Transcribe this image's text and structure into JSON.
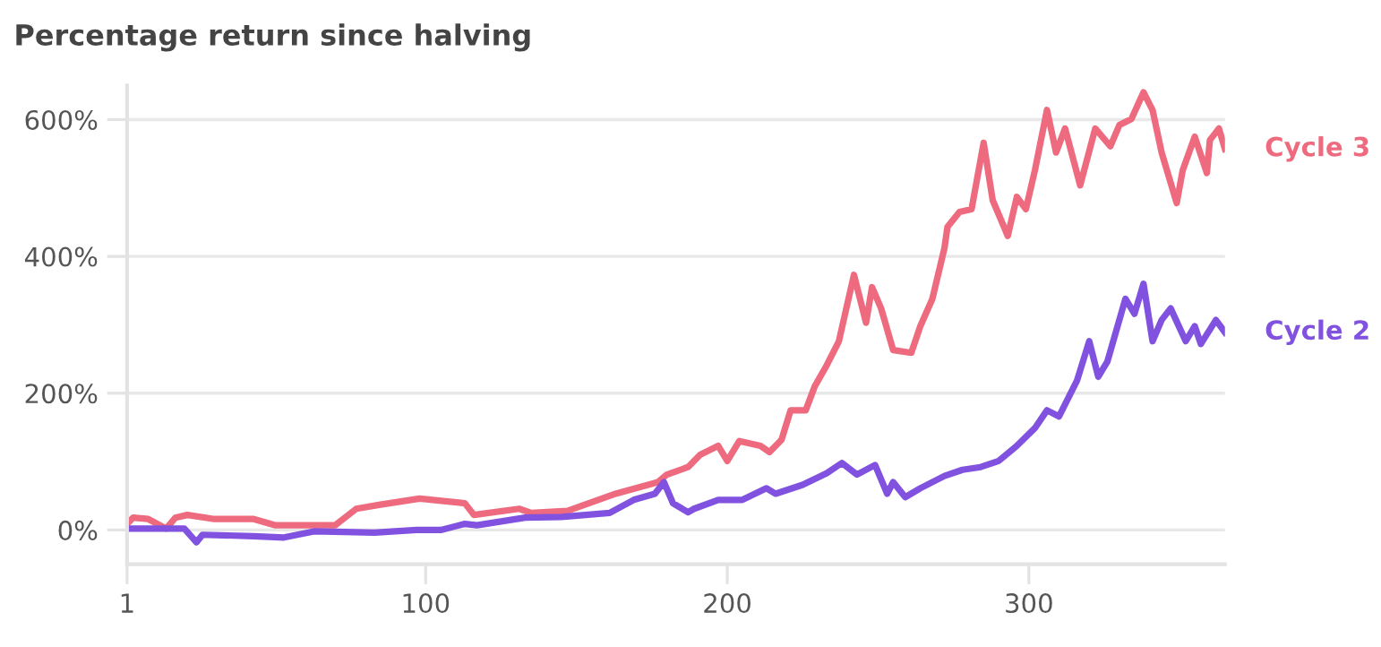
{
  "chart_data": {
    "type": "line",
    "title": "Percentage return since halving",
    "xlim": [
      1,
      365
    ],
    "ylim": [
      -50,
      650
    ],
    "xticks": [
      1,
      100,
      200,
      300
    ],
    "yticks": [
      {
        "value": 0,
        "label": "0%"
      },
      {
        "value": 200,
        "label": "200%"
      },
      {
        "value": 400,
        "label": "400%"
      },
      {
        "value": 600,
        "label": "600%"
      }
    ],
    "grid": "y",
    "legend": false,
    "marker": "none",
    "line_style": "solid",
    "series": [
      {
        "name": "Cycle 3",
        "color": "#ee6a7e",
        "x": [
          1,
          3,
          8,
          14,
          17,
          21,
          30,
          43,
          50,
          70,
          77,
          85,
          98,
          113,
          116,
          131,
          135,
          147,
          163,
          177,
          180,
          187,
          191,
          197,
          200,
          204,
          211,
          214,
          218,
          221,
          226,
          229,
          233,
          237,
          242,
          246,
          248,
          251,
          255,
          261,
          264,
          268,
          272,
          273,
          277,
          281,
          285,
          288,
          293,
          296,
          299,
          302,
          306,
          309,
          312,
          317,
          322,
          327,
          330,
          334,
          338,
          341,
          344,
          349,
          351,
          355,
          359,
          360,
          363,
          365
        ],
        "values": [
          9,
          18,
          16,
          2,
          18,
          22,
          16,
          16,
          7,
          7,
          31,
          37,
          46,
          39,
          22,
          31,
          25,
          28,
          53,
          70,
          81,
          92,
          110,
          123,
          101,
          130,
          123,
          114,
          132,
          175,
          175,
          210,
          241,
          276,
          373,
          303,
          355,
          324,
          263,
          259,
          298,
          338,
          412,
          443,
          465,
          469,
          566,
          482,
          430,
          487,
          469,
          526,
          614,
          552,
          587,
          504,
          587,
          561,
          592,
          601,
          640,
          614,
          552,
          478,
          526,
          575,
          522,
          570,
          587,
          557
        ]
      },
      {
        "name": "Cycle 2",
        "color": "#8152df",
        "x": [
          1,
          20,
          24,
          26,
          43,
          53,
          63,
          83,
          97,
          105,
          113,
          117,
          133,
          145,
          161,
          169,
          176,
          179,
          182,
          187,
          189,
          197,
          205,
          213,
          216,
          225,
          233,
          238,
          243,
          249,
          253,
          255,
          259,
          264,
          272,
          278,
          284,
          290,
          296,
          302,
          306,
          310,
          316,
          320,
          323,
          326,
          332,
          335,
          338,
          341,
          344,
          347,
          352,
          355,
          357,
          362,
          365
        ],
        "values": [
          2,
          2,
          -18,
          -7,
          -9,
          -11,
          -2,
          -4,
          0,
          0,
          9,
          7,
          18,
          19,
          25,
          44,
          53,
          70,
          39,
          26,
          31,
          44,
          44,
          61,
          53,
          66,
          83,
          98,
          81,
          95,
          53,
          70,
          48,
          61,
          79,
          88,
          92,
          101,
          123,
          149,
          175,
          166,
          219,
          276,
          224,
          246,
          338,
          316,
          360,
          276,
          307,
          324,
          276,
          298,
          272,
          307,
          289
        ]
      }
    ]
  }
}
